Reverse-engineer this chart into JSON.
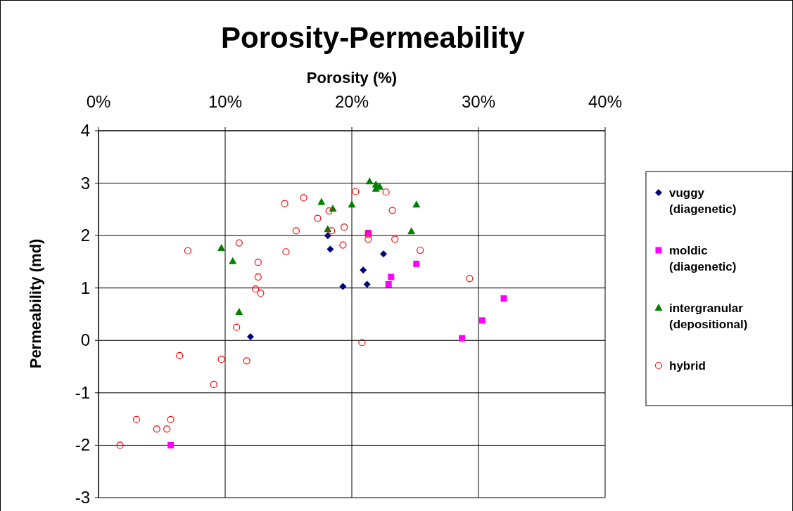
{
  "chart_data": {
    "type": "scatter",
    "title": "Porosity-Permeability",
    "xlabel": "Porosity (%)",
    "ylabel": "Permeability (md)",
    "xlim": [
      0,
      40
    ],
    "xticks": [
      {
        "value": 0,
        "label": "0%"
      },
      {
        "value": 10,
        "label": "10%"
      },
      {
        "value": 20,
        "label": "20%"
      },
      {
        "value": 30,
        "label": "30%"
      },
      {
        "value": 40,
        "label": "40%"
      }
    ],
    "ylim": [
      -3,
      4
    ],
    "yticks": [
      -3,
      -2,
      -1,
      0,
      1,
      2,
      3,
      4
    ],
    "grid": true,
    "legend": "right",
    "series": [
      {
        "name": "vuggy (diagenetic)",
        "color": "#000080",
        "marker": "diamond",
        "x": [
          18.1,
          18.3,
          22.5,
          20.9,
          19.3,
          21.2,
          12.0
        ],
        "values": [
          2.0,
          1.74,
          1.65,
          1.34,
          1.03,
          1.07,
          0.07
        ]
      },
      {
        "name": "moldic (diagenetic)",
        "color": "#ff00ff",
        "marker": "square",
        "x": [
          21.3,
          25.1,
          23.1,
          22.9,
          32.0,
          30.3,
          28.7,
          5.7
        ],
        "values": [
          2.05,
          1.46,
          1.21,
          1.07,
          0.8,
          0.38,
          0.04,
          -2.0
        ]
      },
      {
        "name": "intergranular (depositional)",
        "color": "#008000",
        "marker": "triangle",
        "x": [
          9.7,
          10.6,
          11.1,
          17.6,
          18.5,
          18.1,
          21.4,
          21.9,
          22.2,
          21.9,
          20.0,
          25.1,
          24.7
        ],
        "values": [
          1.76,
          1.51,
          0.54,
          2.64,
          2.51,
          2.12,
          3.03,
          2.97,
          2.93,
          2.89,
          2.59,
          2.59,
          2.08
        ]
      },
      {
        "name": "hybrid",
        "color": "#ff0000",
        "marker": "circle",
        "x": [
          7.05,
          11.1,
          12.6,
          12.6,
          12.4,
          12.8,
          10.9,
          14.7,
          16.2,
          17.3,
          18.2,
          15.6,
          14.8,
          18.4,
          19.4,
          19.3,
          20.3,
          22.7,
          23.2,
          21.3,
          21.3,
          23.4,
          25.4,
          29.3,
          20.8,
          6.4,
          9.7,
          11.7,
          9.1,
          3.0,
          5.7,
          4.6,
          5.4,
          1.7
        ],
        "values": [
          1.71,
          1.86,
          1.49,
          1.21,
          0.98,
          0.9,
          0.25,
          2.61,
          2.72,
          2.33,
          2.47,
          2.09,
          1.69,
          2.09,
          2.16,
          1.82,
          2.84,
          2.83,
          2.48,
          2.02,
          1.93,
          1.93,
          1.72,
          1.18,
          -0.04,
          -0.29,
          -0.36,
          -0.39,
          -0.84,
          -1.51,
          -1.51,
          -1.69,
          -1.69,
          -2.0
        ]
      }
    ]
  }
}
